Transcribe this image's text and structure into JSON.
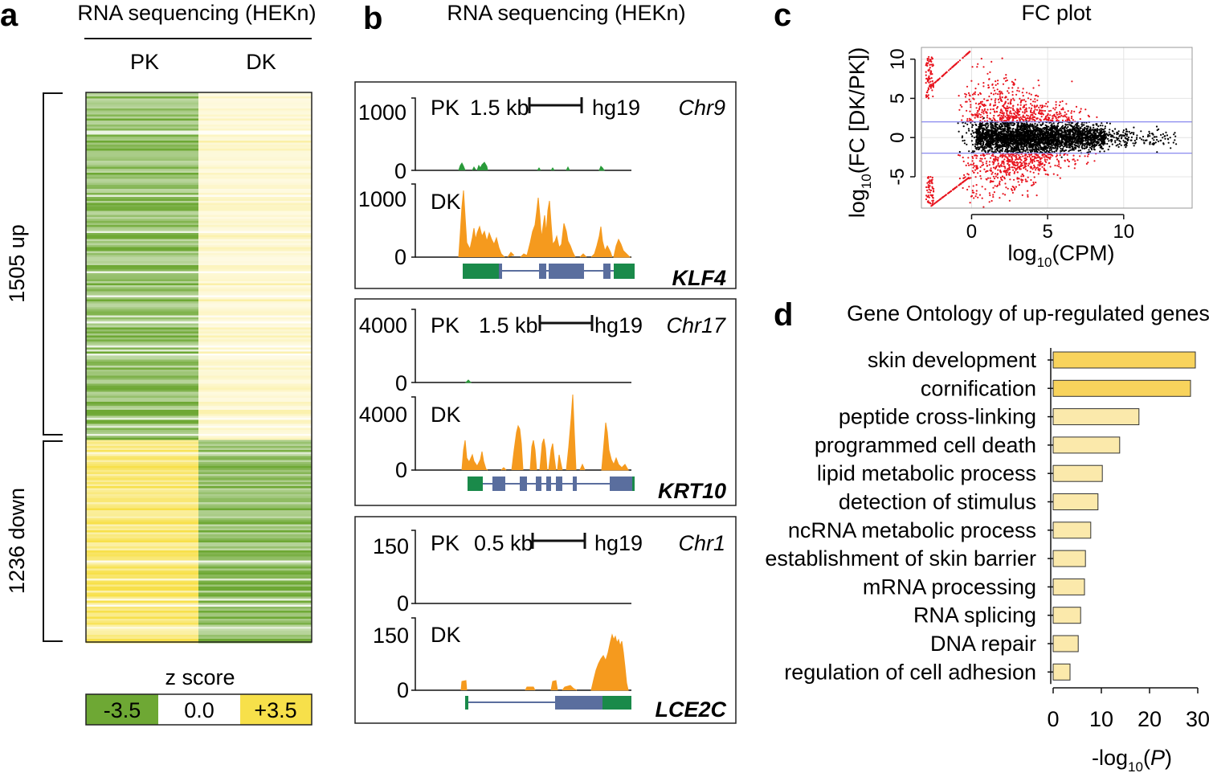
{
  "panel_labels": [
    "a",
    "b",
    "c",
    "d"
  ],
  "panel_a": {
    "title": "RNA sequencing (HEKn)",
    "columns": [
      "PK",
      "DK"
    ],
    "groups": [
      {
        "label": "1505 up",
        "count": 1505
      },
      {
        "label": "1236 down",
        "count": 1236
      }
    ],
    "zscore": {
      "title": "z score",
      "labels": [
        "-3.5",
        "0.0",
        "+3.5"
      ],
      "min": -3.5,
      "max": 3.5
    },
    "colors": {
      "low": "#6ea834",
      "mid": "#ffffff",
      "high": "#f7e04a"
    }
  },
  "panel_b": {
    "title": "RNA sequencing (HEKn)",
    "assembly": "hg19",
    "tracks_names": [
      "PK",
      "DK"
    ],
    "loci": [
      {
        "gene": "KLF4",
        "chr": "Chr9",
        "scale": "1.5 kb",
        "ymax": "1000",
        "ymin": "0"
      },
      {
        "gene": "KRT10",
        "chr": "Chr17",
        "scale": "1.5 kb",
        "ymax": "4000",
        "ymin": "0"
      },
      {
        "gene": "LCE2C",
        "chr": "Chr1",
        "scale": "0.5 kb",
        "ymax": "150",
        "ymin": "0"
      }
    ],
    "colors": {
      "pk": "#2a9a3a",
      "dk": "#f59a1e",
      "utr": "#1a8a4a",
      "exon": "#5a6e9e"
    }
  },
  "chart_data": [
    {
      "type": "scatter",
      "title": "FC plot",
      "xlabel_main": "log",
      "xlabel_sub": "10",
      "xlabel_rest": "(CPM)",
      "ylabel_main": "log",
      "ylabel_sub": "10",
      "ylabel_rest": "(FC [DK/PK])",
      "xticks": [
        "0",
        "5",
        "10"
      ],
      "yticks": [
        "10",
        "5",
        "0",
        "-5"
      ],
      "xlim": [
        -3.3,
        14.5
      ],
      "ylim": [
        -9,
        11.5
      ],
      "threshold_lines": [
        2,
        -2
      ],
      "colors": {
        "significant": "#e8141e",
        "not_significant": "#000000",
        "threshold": "#7b7bee"
      },
      "grid": true
    },
    {
      "type": "bar",
      "orientation": "horizontal",
      "title": "Gene Ontology of up-regulated genes",
      "categories": [
        "skin development",
        "cornification",
        "peptide cross-linking",
        "programmed cell death",
        "lipid metabolic process",
        "detection of stimulus",
        "ncRNA metabolic process",
        "establishment of skin barrier",
        "mRNA processing",
        "RNA splicing",
        "DNA repair",
        "regulation of cell adhesion"
      ],
      "values": [
        29.5,
        28.5,
        17.8,
        13.8,
        10.2,
        9.3,
        7.8,
        6.7,
        6.5,
        5.7,
        5.2,
        3.5
      ],
      "xticks": [
        "0",
        "10",
        "20",
        "30"
      ],
      "xlim": [
        0,
        30
      ],
      "xlabel_pre": "-log",
      "xlabel_sub": "10",
      "xlabel_paren_open": "(",
      "xlabel_var": "P",
      "xlabel_paren_close": ")",
      "colors": {
        "top": "#f8d35c",
        "rest": "#fbe9ab",
        "outline": "#333333"
      }
    }
  ]
}
